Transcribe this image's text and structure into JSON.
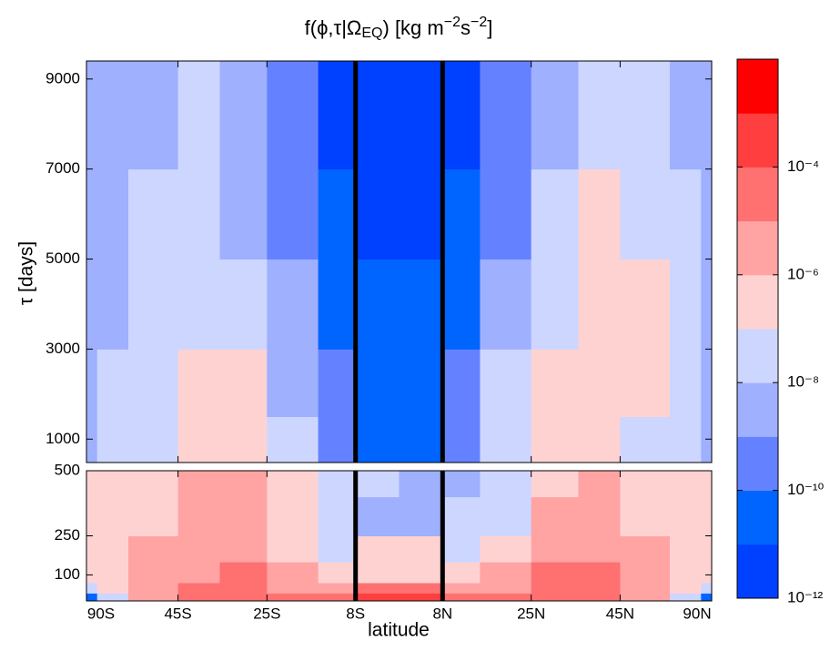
{
  "chart_data": {
    "type": "heatmap",
    "title_parts": [
      {
        "text": "f(ϕ,τ|Ω"
      },
      {
        "text": "EQ",
        "shift": "sub"
      },
      {
        "text": ") [kg m"
      },
      {
        "text": "−2",
        "shift": "super"
      },
      {
        "text": "s"
      },
      {
        "text": "−2",
        "shift": "super"
      },
      {
        "text": "]"
      }
    ],
    "xlabel": "latitude",
    "ylabel": "τ  [days]",
    "x_scale": "sine",
    "xlim": [
      -90,
      90
    ],
    "xticks": [
      {
        "value": -90,
        "label": "90S"
      },
      {
        "value": -45,
        "label": "45S"
      },
      {
        "value": -25,
        "label": "25S"
      },
      {
        "value": -8,
        "label": "8S"
      },
      {
        "value": 8,
        "label": "8N"
      },
      {
        "value": 25,
        "label": "25N"
      },
      {
        "value": 45,
        "label": "45N"
      },
      {
        "value": 90,
        "label": "90N"
      }
    ],
    "x_edges": [
      -90,
      -75,
      -60,
      -45,
      -35,
      -25,
      -15,
      -8,
      0,
      8,
      15,
      25,
      35,
      45,
      60,
      75,
      90
    ],
    "vlines": [
      -8,
      8
    ],
    "vline_color": "#000000",
    "panels": [
      {
        "ylim": [
          480,
          9400
        ],
        "yticks": [
          1000,
          3000,
          5000,
          7000,
          9000
        ],
        "y_edges": [
          480,
          1500,
          3000,
          5000,
          7000,
          9400
        ],
        "values": [
          [
            3e-09,
            3e-08,
            3e-08,
            3e-07,
            3e-07,
            3e-08,
            3e-10,
            3e-11,
            3e-11,
            3e-10,
            3e-08,
            3e-07,
            3e-07,
            3e-08,
            3e-08,
            3e-09
          ],
          [
            3e-09,
            3e-08,
            3e-08,
            3e-07,
            3e-07,
            3e-09,
            3e-10,
            3e-11,
            3e-11,
            3e-10,
            3e-08,
            3e-07,
            3e-07,
            3e-07,
            3e-08,
            3e-09
          ],
          [
            3e-09,
            3e-09,
            3e-08,
            3e-08,
            3e-08,
            3e-09,
            3e-11,
            3e-11,
            3e-11,
            3e-11,
            3e-09,
            3e-08,
            3e-07,
            3e-07,
            3e-08,
            3e-09
          ],
          [
            3e-09,
            3e-09,
            3e-08,
            3e-08,
            3e-09,
            3e-10,
            3e-11,
            3e-12,
            3e-12,
            3e-11,
            3e-10,
            3e-08,
            3e-07,
            3e-08,
            3e-08,
            3e-09
          ],
          [
            3e-09,
            3e-09,
            3e-09,
            3e-08,
            3e-09,
            3e-10,
            3e-12,
            3e-12,
            3e-12,
            3e-12,
            3e-10,
            3e-09,
            3e-08,
            3e-08,
            3e-09,
            3e-09
          ]
        ]
      },
      {
        "ylim": [
          0,
          500
        ],
        "yticks": [
          100,
          250,
          500
        ],
        "y_edges": [
          0,
          30,
          70,
          150,
          250,
          400,
          500
        ],
        "values": [
          [
            3e-11,
            3e-08,
            3e-06,
            3e-05,
            3e-05,
            3e-05,
            3e-05,
            0.0003,
            0.0003,
            3e-05,
            3e-05,
            3e-05,
            3e-05,
            3e-06,
            3e-08,
            3e-11
          ],
          [
            3e-08,
            3e-07,
            3e-06,
            3e-05,
            3e-05,
            3e-06,
            3e-06,
            3e-05,
            3e-05,
            3e-06,
            3e-06,
            3e-05,
            3e-05,
            3e-06,
            3e-07,
            3e-08
          ],
          [
            3e-07,
            3e-07,
            3e-06,
            3e-06,
            3e-05,
            3e-06,
            3e-07,
            3e-07,
            3e-07,
            3e-07,
            3e-06,
            3e-05,
            3e-05,
            3e-06,
            3e-07,
            3e-07
          ],
          [
            3e-07,
            3e-07,
            3e-06,
            3e-06,
            3e-06,
            3e-07,
            3e-08,
            3e-07,
            3e-07,
            3e-08,
            3e-07,
            3e-06,
            3e-06,
            3e-06,
            3e-07,
            3e-07
          ],
          [
            3e-07,
            3e-07,
            3e-07,
            3e-06,
            3e-06,
            3e-07,
            3e-08,
            3e-09,
            3e-09,
            3e-08,
            3e-08,
            3e-06,
            3e-06,
            3e-07,
            3e-07,
            3e-07
          ],
          [
            3e-07,
            3e-07,
            3e-07,
            3e-06,
            3e-06,
            3e-07,
            3e-08,
            3e-08,
            3e-09,
            3e-09,
            3e-08,
            3e-07,
            3e-06,
            3e-07,
            3e-07,
            3e-07
          ]
        ]
      }
    ],
    "colorbar": {
      "scale": "log",
      "levels": [
        1e-12,
        1e-11,
        1e-10,
        1e-09,
        1e-08,
        1e-07,
        1e-06,
        1e-05,
        0.0001,
        0.001,
        0.01
      ],
      "colors": [
        "#0040ff",
        "#0064ff",
        "#6482ff",
        "#9fb0ff",
        "#cdd6ff",
        "#ffd2d2",
        "#ffa3a3",
        "#ff7070",
        "#ff3f3f",
        "#ff0000"
      ],
      "ticks": [
        {
          "value": 1e-12,
          "label": "10⁻¹²"
        },
        {
          "value": 1e-10,
          "label": "10⁻¹⁰"
        },
        {
          "value": 1e-08,
          "label": "10⁻⁸"
        },
        {
          "value": 1e-06,
          "label": "10⁻⁶"
        },
        {
          "value": 0.0001,
          "label": "10⁻⁴"
        }
      ]
    }
  }
}
